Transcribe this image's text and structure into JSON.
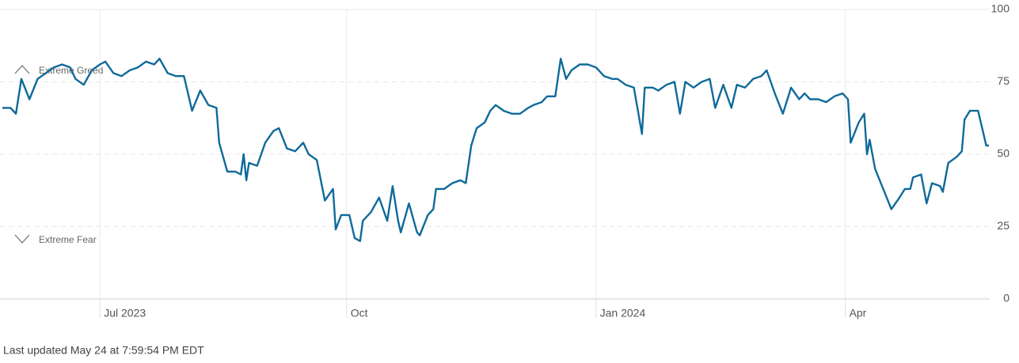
{
  "chart_data": {
    "type": "line",
    "annotations": [
      "Extreme Greed",
      "Extreme Fear"
    ],
    "footer": "Last updated May 24 at 7:59:54 PM EDT",
    "x": [
      0,
      3,
      5,
      7,
      10,
      13,
      16,
      19,
      22,
      25,
      27,
      30,
      33,
      36,
      38,
      41,
      44,
      47,
      50,
      53,
      56,
      58,
      61,
      64,
      67,
      70,
      73,
      76,
      79,
      80,
      83,
      86,
      88,
      89,
      90,
      91,
      94,
      97,
      100,
      102,
      105,
      108,
      111,
      113,
      116,
      119,
      122,
      123,
      125,
      128,
      130,
      132,
      133,
      136,
      139,
      142,
      144,
      146,
      147,
      150,
      153,
      154,
      157,
      159,
      160,
      163,
      166,
      169,
      171,
      173,
      175,
      178,
      180,
      182,
      185,
      188,
      191,
      194,
      196,
      199,
      201,
      204,
      206,
      208,
      210,
      213,
      216,
      219,
      222,
      225,
      227,
      230,
      233,
      236,
      237,
      240,
      242,
      245,
      248,
      250,
      252,
      255,
      258,
      261,
      263,
      266,
      269,
      271,
      274,
      277,
      280,
      282,
      285,
      288,
      291,
      294,
      296,
      298,
      301,
      304,
      307,
      310,
      312,
      313,
      316,
      318,
      319,
      320,
      322,
      325,
      328,
      331,
      333,
      335,
      336,
      339,
      341,
      343,
      346,
      347,
      349,
      352,
      354,
      355,
      357,
      360,
      362,
      363,
      364
    ],
    "series": [
      {
        "color": "#0f6a9a",
        "values": [
          66,
          66,
          64,
          76,
          69,
          76,
          78,
          80,
          81,
          80,
          76,
          74,
          79,
          81,
          82,
          78,
          77,
          79,
          80,
          82,
          81,
          83,
          78,
          77,
          77,
          65,
          72,
          67,
          66,
          54,
          44,
          44,
          43,
          50,
          41,
          47,
          46,
          54,
          58,
          59,
          52,
          51,
          54,
          50,
          48,
          34,
          38,
          24,
          29,
          29,
          21,
          20,
          27,
          30,
          35,
          27,
          39,
          27,
          23,
          33,
          23,
          22,
          29,
          31,
          38,
          38,
          40,
          41,
          40,
          53,
          59,
          61,
          65,
          67,
          65,
          64,
          64,
          66,
          67,
          68,
          70,
          70,
          83,
          76,
          79,
          81,
          81,
          80,
          77,
          76,
          76,
          74,
          73,
          57,
          73,
          73,
          72,
          74,
          75,
          64,
          75,
          73,
          75,
          76,
          66,
          74,
          66,
          74,
          73,
          76,
          77,
          79,
          71,
          64,
          73,
          69,
          71,
          69,
          69,
          68,
          70,
          71,
          69,
          54,
          61,
          64,
          50,
          55,
          45,
          38,
          31,
          35,
          38,
          38,
          42,
          43,
          33,
          40,
          39,
          37,
          47,
          49,
          51,
          62,
          65,
          65,
          57,
          53,
          53
        ]
      }
    ],
    "xlim": [
      0,
      364
    ],
    "xticks": [
      {
        "value": 36,
        "label": "Jul 2023"
      },
      {
        "value": 127,
        "label": "Oct"
      },
      {
        "value": 219,
        "label": "Jan 2024"
      },
      {
        "value": 311,
        "label": "Apr"
      }
    ],
    "ylim": [
      0,
      100
    ],
    "yticks": [
      0,
      25,
      50,
      75,
      100
    ],
    "grid": true
  }
}
